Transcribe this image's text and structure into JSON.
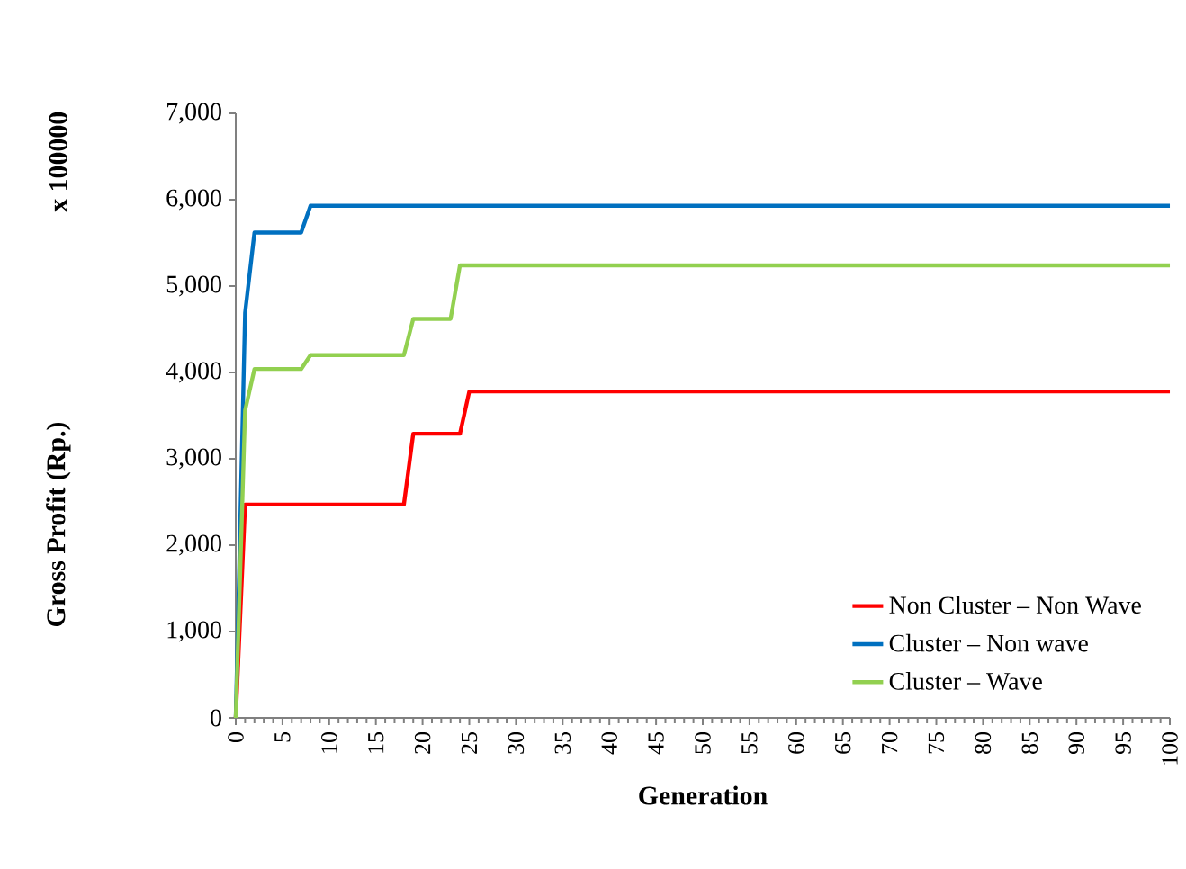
{
  "chart_data": {
    "type": "line",
    "xlabel": "Generation",
    "ylabel": "Gross Profit (Rp.)",
    "annotations": [
      "x 100000"
    ],
    "xlim": [
      0,
      100
    ],
    "xticks": [
      0,
      5,
      10,
      15,
      20,
      25,
      30,
      35,
      40,
      45,
      50,
      55,
      60,
      65,
      70,
      75,
      80,
      85,
      90,
      95,
      100
    ],
    "ylim": [
      0,
      7000
    ],
    "yticks": [
      {
        "value": 0,
        "label": "0"
      },
      {
        "value": 1000,
        "label": "1,000"
      },
      {
        "value": 2000,
        "label": "2,000"
      },
      {
        "value": 3000,
        "label": "3,000"
      },
      {
        "value": 4000,
        "label": "4,000"
      },
      {
        "value": 5000,
        "label": "5,000"
      },
      {
        "value": 6000,
        "label": "6,000"
      },
      {
        "value": 7000,
        "label": "7,000"
      }
    ],
    "grid": false,
    "legend": "bottom right",
    "marker": "none",
    "line_style": "solid",
    "series": [
      {
        "name": "Non Cluster – Non Wave",
        "color": "#ff0000",
        "x": [
          0,
          1,
          18,
          19,
          24,
          25,
          100
        ],
        "values": [
          0,
          2470,
          2470,
          3290,
          3290,
          3780,
          3780
        ]
      },
      {
        "name": "Cluster – Non wave",
        "color": "#0070c0",
        "x": [
          0,
          1,
          2,
          7,
          8,
          100
        ],
        "values": [
          0,
          4690,
          5620,
          5620,
          5930,
          5930
        ]
      },
      {
        "name": "Cluster – Wave",
        "color": "#92d050",
        "x": [
          0,
          1,
          2,
          7,
          8,
          18,
          19,
          23,
          24,
          100
        ],
        "values": [
          0,
          3560,
          4040,
          4040,
          4200,
          4200,
          4620,
          4620,
          5240,
          5240
        ]
      }
    ]
  }
}
